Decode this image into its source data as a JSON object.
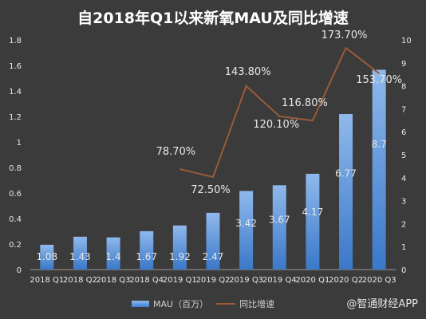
{
  "page": {
    "title": "自2018年Q1以来新氧MAU及同比增速",
    "watermark": "@智通财经APP"
  },
  "chart_data": {
    "type": "bar",
    "title": "自2018年Q1以来新氧MAU及同比增速",
    "categories": [
      "2018 Q1",
      "2018 Q2",
      "2018 Q3",
      "2018 Q4",
      "2019 Q1",
      "2019 Q2",
      "2019 Q3",
      "2019 Q4",
      "2020 Q1",
      "2020 Q2",
      "2020 Q3"
    ],
    "series": [
      {
        "name": "MAU（百万）",
        "type": "bar",
        "axis": "right",
        "values": [
          1.08,
          1.43,
          1.4,
          1.67,
          1.92,
          2.47,
          3.42,
          3.67,
          4.17,
          6.77,
          8.7
        ],
        "labels": [
          "1.08",
          "1.43",
          "1.4",
          "1.67",
          "1.92",
          "2.47",
          "3.42",
          "3.67",
          "4.17",
          "6.77",
          "8.7"
        ]
      },
      {
        "name": "同比增速",
        "type": "line",
        "axis": "left",
        "values": [
          null,
          null,
          null,
          null,
          0.787,
          0.725,
          1.438,
          1.201,
          1.168,
          1.737,
          1.537
        ],
        "labels": [
          null,
          null,
          null,
          null,
          "78.70%",
          "72.50%",
          "143.80%",
          "120.10%",
          "116.80%",
          "173.70%",
          "153.70%"
        ]
      }
    ],
    "left_axis": {
      "ylim": [
        0,
        1.8
      ],
      "ticks": [
        "0",
        "0.2",
        "0.4",
        "0.6",
        "0.8",
        "1",
        "1.2",
        "1.4",
        "1.6",
        "1.8"
      ]
    },
    "right_axis": {
      "ylim": [
        0,
        10
      ],
      "ticks": [
        "0",
        "1",
        "2",
        "3",
        "4",
        "5",
        "6",
        "7",
        "8",
        "9",
        "10"
      ]
    },
    "grid": false,
    "legend_position": "bottom",
    "colors": {
      "bar": "#4a86d4",
      "line": "#9b5a38",
      "text": "#e8e8e8",
      "axis": "#bdbdbd"
    }
  }
}
